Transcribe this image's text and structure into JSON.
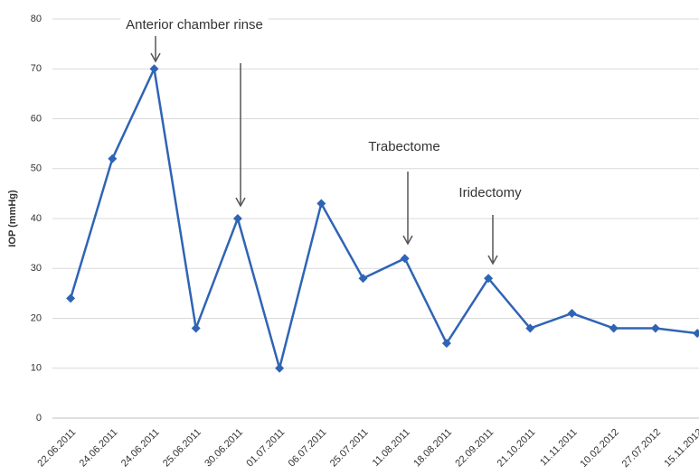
{
  "chart_data": {
    "type": "line",
    "y_label": "IOP (mmHg)",
    "categories": [
      "22.06.2011",
      "24.06.2011",
      "24.06.2011",
      "25.06.2011",
      "30.06.2011",
      "01.07.2011",
      "06.07.2011",
      "25.07.2011",
      "11.08.2011",
      "18.08.2011",
      "22.09.2011",
      "21.10.2011",
      "11.11.2011",
      "10.02.2012",
      "27.07.2012",
      "15.11.2012"
    ],
    "series": [
      {
        "name": "IOP",
        "color": "#2f64b5",
        "values": [
          24,
          52,
          70,
          18,
          40,
          10,
          43,
          28,
          32,
          15,
          28,
          18,
          21,
          18,
          18,
          17
        ]
      }
    ],
    "ylim": [
      0,
      80
    ],
    "yticks": [
      0,
      10,
      20,
      30,
      40,
      50,
      60,
      70,
      80
    ],
    "grid": true,
    "annotations": [
      "Anterior chamber rinse",
      "Trabectome",
      "Iridectomy"
    ]
  }
}
